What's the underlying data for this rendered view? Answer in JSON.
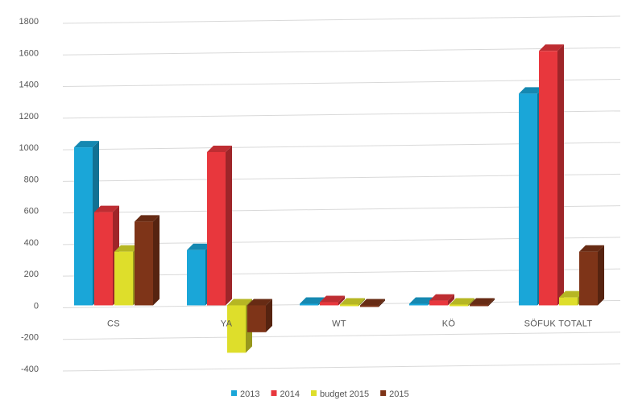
{
  "chart_data": {
    "type": "bar",
    "title": "",
    "xlabel": "",
    "ylabel": "",
    "categories": [
      "CS",
      "YA",
      "WT",
      "KÖ",
      "SÖFUK TOTALT"
    ],
    "series": [
      {
        "name": "2013",
        "color": "#1aa6d8",
        "values": [
          1000,
          350,
          10,
          10,
          1340
        ]
      },
      {
        "name": "2014",
        "color": "#e8373d",
        "values": [
          590,
          970,
          20,
          30,
          1610
        ]
      },
      {
        "name": "budget 2015",
        "color": "#dede2b",
        "values": [
          340,
          -300,
          5,
          5,
          50
        ]
      },
      {
        "name": "2015",
        "color": "#7e3418",
        "values": [
          530,
          -170,
          -10,
          5,
          340
        ]
      }
    ],
    "ylim": [
      -400,
      1800
    ],
    "yticks": [
      -400,
      -200,
      0,
      200,
      400,
      600,
      800,
      1000,
      1200,
      1400,
      1600,
      1800
    ],
    "grid": true,
    "legend": "bottom",
    "three_d": true
  }
}
